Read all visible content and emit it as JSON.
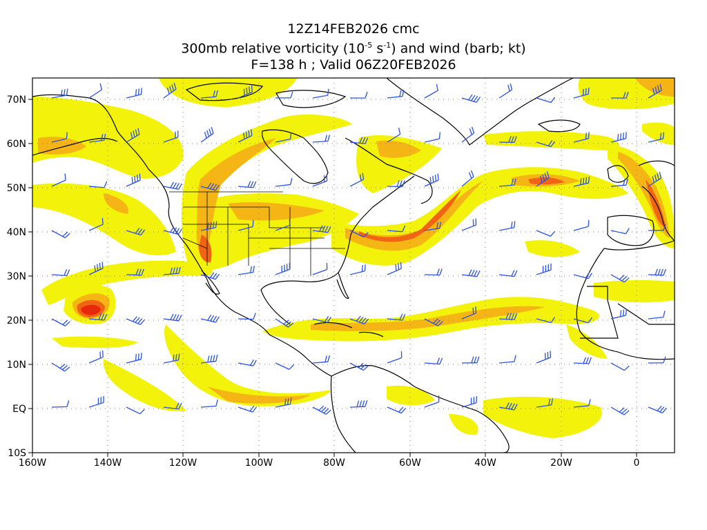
{
  "title": {
    "line1": "12Z14FEB2026 cmc",
    "line2_pre": "300mb relative vorticity (10",
    "line2_exp1": "-5",
    "line2_mid": " s",
    "line2_exp2": "-1",
    "line2_post": ") and wind (barb; kt)",
    "line3": "F=138 h ; Valid 06Z20FEB2026"
  },
  "axes": {
    "lat_labels": [
      "70N",
      "60N",
      "50N",
      "40N",
      "30N",
      "20N",
      "10N",
      "EQ",
      "10S"
    ],
    "lon_labels": [
      "160W",
      "140W",
      "120W",
      "100W",
      "80W",
      "60W",
      "40W",
      "20W",
      "0"
    ]
  },
  "colors": {
    "vort_low": "#f2f20a",
    "vort_mid": "#f5b514",
    "vort_high": "#f06414",
    "vort_max": "#e8280a",
    "barb": "#2850e8",
    "coast": "#000000",
    "grid": "#808080"
  }
}
